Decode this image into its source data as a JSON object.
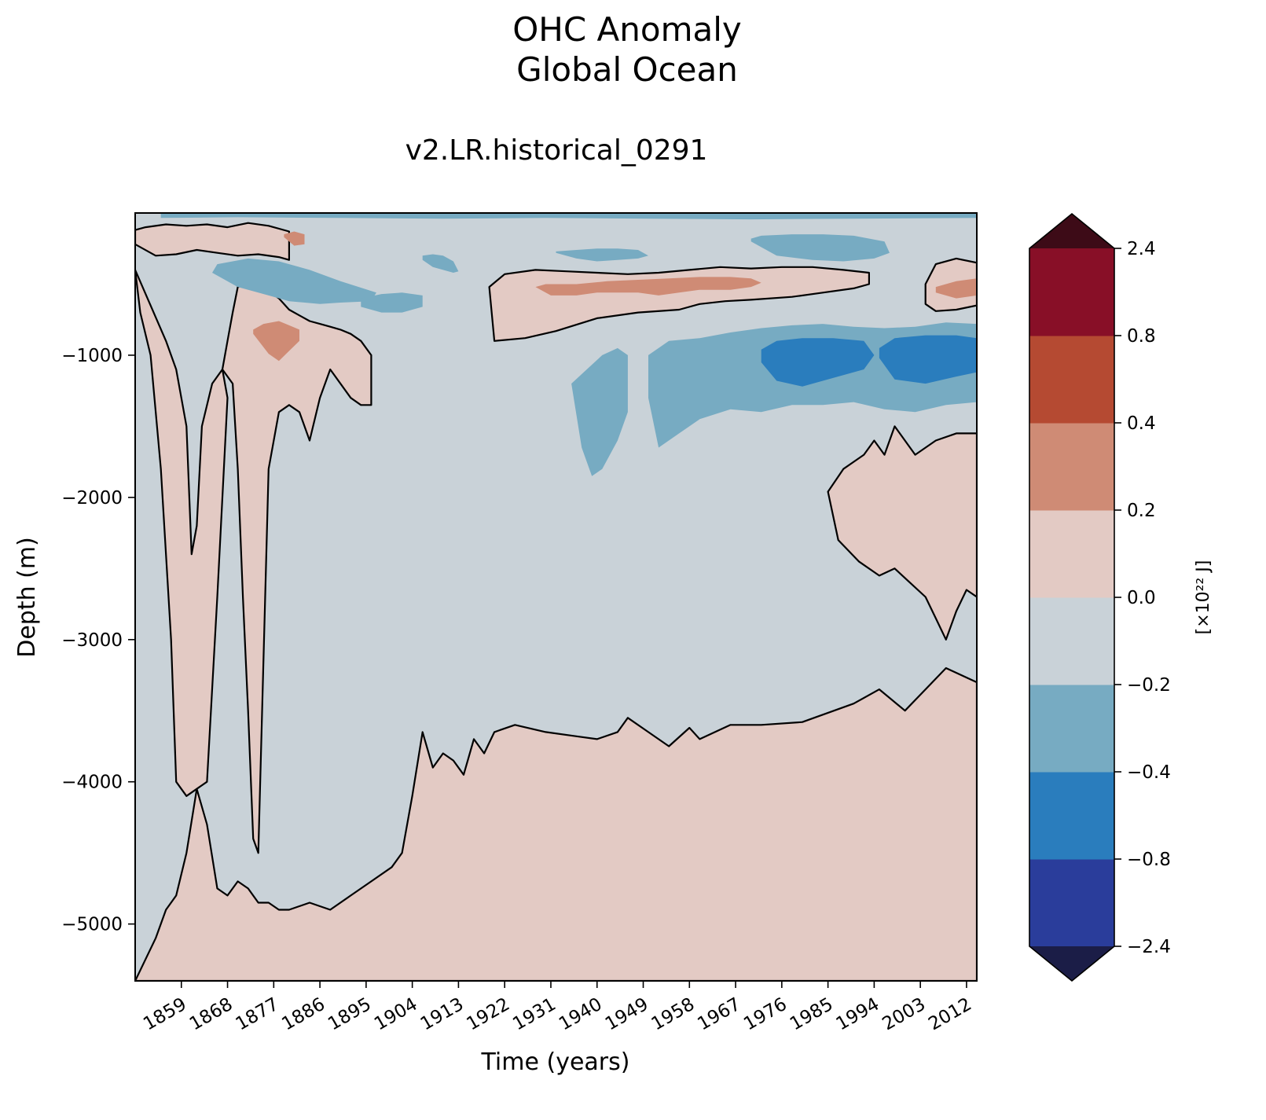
{
  "chart_data": {
    "type": "heatmap",
    "title_line1": "OHC Anomaly",
    "title_line2": "Global Ocean",
    "subtitle": "v2.LR.historical_0291",
    "xlabel": "Time (years)",
    "ylabel": "Depth (m)",
    "xlim": [
      1850,
      2014
    ],
    "ylim": [
      -5400,
      0
    ],
    "x_ticks": [
      1859,
      1868,
      1877,
      1886,
      1895,
      1904,
      1913,
      1922,
      1931,
      1940,
      1949,
      1958,
      1967,
      1976,
      1985,
      1994,
      2003,
      2012
    ],
    "y_ticks": [
      {
        "value": -1000,
        "label": "−1000"
      },
      {
        "value": -2000,
        "label": "−2000"
      },
      {
        "value": -3000,
        "label": "−3000"
      },
      {
        "value": -4000,
        "label": "−4000"
      },
      {
        "value": -5000,
        "label": "−5000"
      }
    ],
    "contour_levels": [
      0
    ],
    "colorbar": {
      "label": "[×10²² J]",
      "extend": "both",
      "levels": [
        {
          "value": -2.4,
          "label": "−2.4"
        },
        {
          "value": -0.8,
          "label": "−0.8"
        },
        {
          "value": -0.4,
          "label": "−0.4"
        },
        {
          "value": -0.2,
          "label": "−0.2"
        },
        {
          "value": 0.0,
          "label": "0.0"
        },
        {
          "value": 0.2,
          "label": "0.2"
        },
        {
          "value": 0.4,
          "label": "0.4"
        },
        {
          "value": 0.8,
          "label": "0.8"
        },
        {
          "value": 2.4,
          "label": "2.4"
        }
      ],
      "bin_colors": [
        "#2a3d9b",
        "#2a7dbd",
        "#77abc2",
        "#c9d2d8",
        "#e3cac4",
        "#cf8b75",
        "#b54a32",
        "#880f27"
      ],
      "under_color": "#1b1d47",
      "over_color": "#3d0b17"
    },
    "regions": [
      {
        "name": "deep-warm",
        "bin": 4,
        "x": [
          1850,
          1854,
          1856,
          1858,
          1860,
          1862,
          1864,
          1866,
          1868,
          1870,
          1872,
          1874,
          1876,
          1878,
          1880,
          1884,
          1888,
          1892,
          1896,
          1900,
          1902,
          1904,
          1906,
          1908,
          1910,
          1912,
          1914,
          1916,
          1918,
          1920,
          1924,
          1930,
          1936,
          1940,
          1944,
          1946,
          1950,
          1954,
          1958,
          1960,
          1966,
          1972,
          1980,
          1990,
          1995,
          2000,
          2004,
          2008,
          2014,
          2014,
          1850
        ],
        "y": [
          -5400,
          -5100,
          -4900,
          -4800,
          -4500,
          -4050,
          -4300,
          -4750,
          -4800,
          -4700,
          -4750,
          -4850,
          -4850,
          -4900,
          -4900,
          -4850,
          -4900,
          -4800,
          -4700,
          -4600,
          -4500,
          -4100,
          -3650,
          -3900,
          -3800,
          -3850,
          -3950,
          -3700,
          -3800,
          -3650,
          -3600,
          -3650,
          -3680,
          -3700,
          -3650,
          -3550,
          -3650,
          -3750,
          -3620,
          -3700,
          -3600,
          -3600,
          -3580,
          -3450,
          -3350,
          -3500,
          -3350,
          -3200,
          -3300,
          -5400,
          -5400
        ]
      },
      {
        "name": "column-warm-1",
        "bin": 4,
        "x": [
          1850,
          1853,
          1856,
          1858,
          1860,
          1861,
          1862,
          1863,
          1865,
          1867,
          1868,
          1867,
          1866,
          1864,
          1860,
          1858,
          1857,
          1855,
          1853,
          1851,
          1850
        ],
        "y": [
          -400,
          -650,
          -900,
          -1100,
          -1500,
          -2400,
          -2200,
          -1500,
          -1200,
          -1100,
          -1300,
          -2000,
          -2700,
          -4000,
          -4100,
          -4000,
          -3000,
          -1800,
          -1000,
          -700,
          -400
        ]
      },
      {
        "name": "column-warm-2",
        "bin": 4,
        "x": [
          1867,
          1869,
          1870,
          1871,
          1872,
          1873,
          1874,
          1876,
          1878,
          1880,
          1882,
          1884,
          1886,
          1888,
          1892,
          1894,
          1896,
          1896,
          1894,
          1892,
          1890,
          1888,
          1886,
          1884,
          1882,
          1880,
          1878,
          1876,
          1874,
          1872,
          1870,
          1869,
          1868,
          1867
        ],
        "y": [
          -1100,
          -1200,
          -1800,
          -2700,
          -3500,
          -4400,
          -4500,
          -1800,
          -1400,
          -1350,
          -1400,
          -1600,
          -1300,
          -1100,
          -1300,
          -1350,
          -1350,
          -1000,
          -900,
          -850,
          -820,
          -800,
          -780,
          -760,
          -720,
          -680,
          -600,
          -550,
          -520,
          -500,
          -520,
          -700,
          -900,
          -1100
        ]
      },
      {
        "name": "near-surface-warm-band",
        "bin": 4,
        "x": [
          1850,
          1854,
          1858,
          1862,
          1866,
          1870,
          1874,
          1878,
          1880,
          1880,
          1876,
          1872,
          1868,
          1864,
          1860,
          1856,
          1852,
          1850
        ],
        "y": [
          -220,
          -300,
          -290,
          -260,
          -280,
          -300,
          -290,
          -310,
          -330,
          -130,
          -90,
          -70,
          -100,
          -80,
          -90,
          -80,
          -100,
          -120
        ]
      },
      {
        "name": "surface-warm-1955-1993",
        "bin": 4,
        "x": [
          1919,
          1920,
          1926,
          1932,
          1940,
          1948,
          1956,
          1960,
          1965,
          1970,
          1978,
          1984,
          1990,
          1993,
          1993,
          1988,
          1982,
          1976,
          1970,
          1964,
          1958,
          1952,
          1946,
          1940,
          1934,
          1928,
          1922,
          1919
        ],
        "y": [
          -520,
          -900,
          -880,
          -830,
          -740,
          -700,
          -680,
          -640,
          -620,
          -610,
          -590,
          -560,
          -530,
          -500,
          -420,
          -400,
          -380,
          -380,
          -390,
          -380,
          -400,
          -420,
          -430,
          -420,
          -410,
          -400,
          -430,
          -520
        ]
      },
      {
        "name": "surface-warm-2004-2014",
        "bin": 4,
        "x": [
          2004,
          2006,
          2010,
          2014,
          2014,
          2010,
          2006,
          2004
        ],
        "y": [
          -640,
          -690,
          -680,
          -650,
          -350,
          -320,
          -360,
          -500
        ]
      },
      {
        "name": "deep-warm-1979-2014",
        "bin": 4,
        "x": [
          1985,
          1987,
          1991,
          1995,
          1998,
          2001,
          2004,
          2006,
          2008,
          2010,
          2012,
          2014,
          2014,
          2010,
          2006,
          2002,
          1998,
          1996,
          1994,
          1992,
          1990,
          1988,
          1985
        ],
        "y": [
          -1960,
          -2300,
          -2450,
          -2550,
          -2500,
          -2600,
          -2700,
          -2850,
          -3000,
          -2800,
          -2650,
          -2700,
          -1550,
          -1550,
          -1600,
          -1700,
          -1500,
          -1700,
          -1600,
          -1700,
          -1750,
          -1800,
          -1960
        ]
      },
      {
        "name": "surface-mid-cool-1",
        "bin": 2,
        "x": [
          1865,
          1870,
          1876,
          1880,
          1886,
          1890,
          1896,
          1897,
          1890,
          1884,
          1878,
          1872,
          1866
        ],
        "y": [
          -420,
          -520,
          -580,
          -620,
          -640,
          -630,
          -620,
          -560,
          -480,
          -400,
          -340,
          -320,
          -360
        ]
      },
      {
        "name": "surface-mid-cool-2",
        "bin": 2,
        "x": [
          1894,
          1898,
          1902,
          1906,
          1906,
          1902,
          1898,
          1894
        ],
        "y": [
          -660,
          -700,
          -700,
          -660,
          -580,
          -560,
          -570,
          -600
        ]
      },
      {
        "name": "subsurface-cool-1941",
        "bin": 2,
        "x": [
          1935,
          1937,
          1939,
          1941,
          1944,
          1946,
          1946,
          1944,
          1941,
          1938,
          1935
        ],
        "y": [
          -1200,
          -1650,
          -1850,
          -1800,
          -1600,
          -1400,
          -1000,
          -950,
          -1000,
          -1100,
          -1200
        ]
      },
      {
        "name": "subsurface-cool-band",
        "bin": 2,
        "x": [
          1950,
          1952,
          1956,
          1960,
          1966,
          1972,
          1978,
          1984,
          1990,
          1996,
          2002,
          2008,
          2014,
          2014,
          2008,
          2002,
          1996,
          1990,
          1984,
          1978,
          1972,
          1966,
          1960,
          1954,
          1950
        ],
        "y": [
          -1300,
          -1650,
          -1550,
          -1450,
          -1380,
          -1400,
          -1350,
          -1350,
          -1330,
          -1380,
          -1400,
          -1350,
          -1330,
          -780,
          -770,
          -800,
          -810,
          -800,
          -780,
          -790,
          -810,
          -840,
          -880,
          -900,
          -1000
        ]
      },
      {
        "name": "subsurface-strong-cool-1",
        "bin": 1,
        "x": [
          1972,
          1975,
          1980,
          1986,
          1992,
          1994,
          1992,
          1986,
          1980,
          1975,
          1972
        ],
        "y": [
          -1050,
          -1180,
          -1220,
          -1160,
          -1100,
          -1000,
          -900,
          -880,
          -880,
          -900,
          -960
        ]
      },
      {
        "name": "subsurface-strong-cool-2",
        "bin": 1,
        "x": [
          1995,
          1998,
          2004,
          2010,
          2014,
          2014,
          2010,
          2004,
          1998,
          1995
        ],
        "y": [
          -1020,
          -1170,
          -1200,
          -1150,
          -1120,
          -880,
          -860,
          -860,
          -880,
          -950
        ]
      },
      {
        "name": "shallow-cool-1975-1997",
        "bin": 2,
        "x": [
          1970,
          1975,
          1982,
          1988,
          1994,
          1997,
          1996,
          1990,
          1984,
          1978,
          1972,
          1970
        ],
        "y": [
          -200,
          -300,
          -330,
          -340,
          -320,
          -280,
          -200,
          -160,
          -150,
          -150,
          -160,
          -180
        ]
      },
      {
        "name": "shallow-cool-1932-1950",
        "bin": 2,
        "x": [
          1932,
          1936,
          1940,
          1944,
          1948,
          1950,
          1948,
          1944,
          1940,
          1936,
          1932
        ],
        "y": [
          -280,
          -320,
          -340,
          -330,
          -320,
          -300,
          -260,
          -250,
          -250,
          -260,
          -270
        ]
      },
      {
        "name": "shallow-cool-1906-1913",
        "bin": 2,
        "x": [
          1906,
          1908,
          1910,
          1912,
          1913,
          1912,
          1910,
          1908,
          1906
        ],
        "y": [
          -330,
          -380,
          -400,
          -420,
          -410,
          -340,
          -300,
          -290,
          -300
        ]
      },
      {
        "name": "surface-cool-strip",
        "bin": 2,
        "x": [
          1855,
          1870,
          1890,
          1910,
          1930,
          1950,
          1970,
          1990,
          2014,
          2014,
          1990,
          1970,
          1950,
          1930,
          1910,
          1890,
          1870,
          1855
        ],
        "y": [
          -35,
          -30,
          -35,
          -40,
          -35,
          -40,
          -45,
          -40,
          -35,
          0,
          0,
          0,
          0,
          0,
          0,
          0,
          0,
          0
        ]
      },
      {
        "name": "warm-1880s-patch",
        "bin": 5,
        "x": [
          1873,
          1876,
          1878,
          1880,
          1882,
          1882,
          1880,
          1878,
          1875,
          1873
        ],
        "y": [
          -850,
          -990,
          -1040,
          -970,
          -900,
          -820,
          -790,
          -760,
          -780,
          -820
        ]
      },
      {
        "name": "warm-1925-1970-patches",
        "bin": 5,
        "x": [
          1928,
          1931,
          1936,
          1940,
          1944,
          1948,
          1952,
          1956,
          1960,
          1966,
          1970,
          1972,
          1970,
          1966,
          1960,
          1954,
          1948,
          1942,
          1936,
          1930,
          1928
        ],
        "y": [
          -520,
          -580,
          -580,
          -560,
          -560,
          -560,
          -580,
          -560,
          -540,
          -540,
          -520,
          -490,
          -460,
          -450,
          -450,
          -460,
          -470,
          -480,
          -500,
          -500,
          -520
        ]
      },
      {
        "name": "warm-2006-patch",
        "bin": 5,
        "x": [
          2006,
          2010,
          2014,
          2014,
          2010,
          2006
        ],
        "y": [
          -560,
          -600,
          -580,
          -460,
          -480,
          -520
        ]
      },
      {
        "name": "warm-1880-surface-patch",
        "bin": 5,
        "x": [
          1879,
          1881,
          1883,
          1883,
          1881,
          1879
        ],
        "y": [
          -170,
          -230,
          -220,
          -150,
          -130,
          -150
        ]
      }
    ]
  }
}
